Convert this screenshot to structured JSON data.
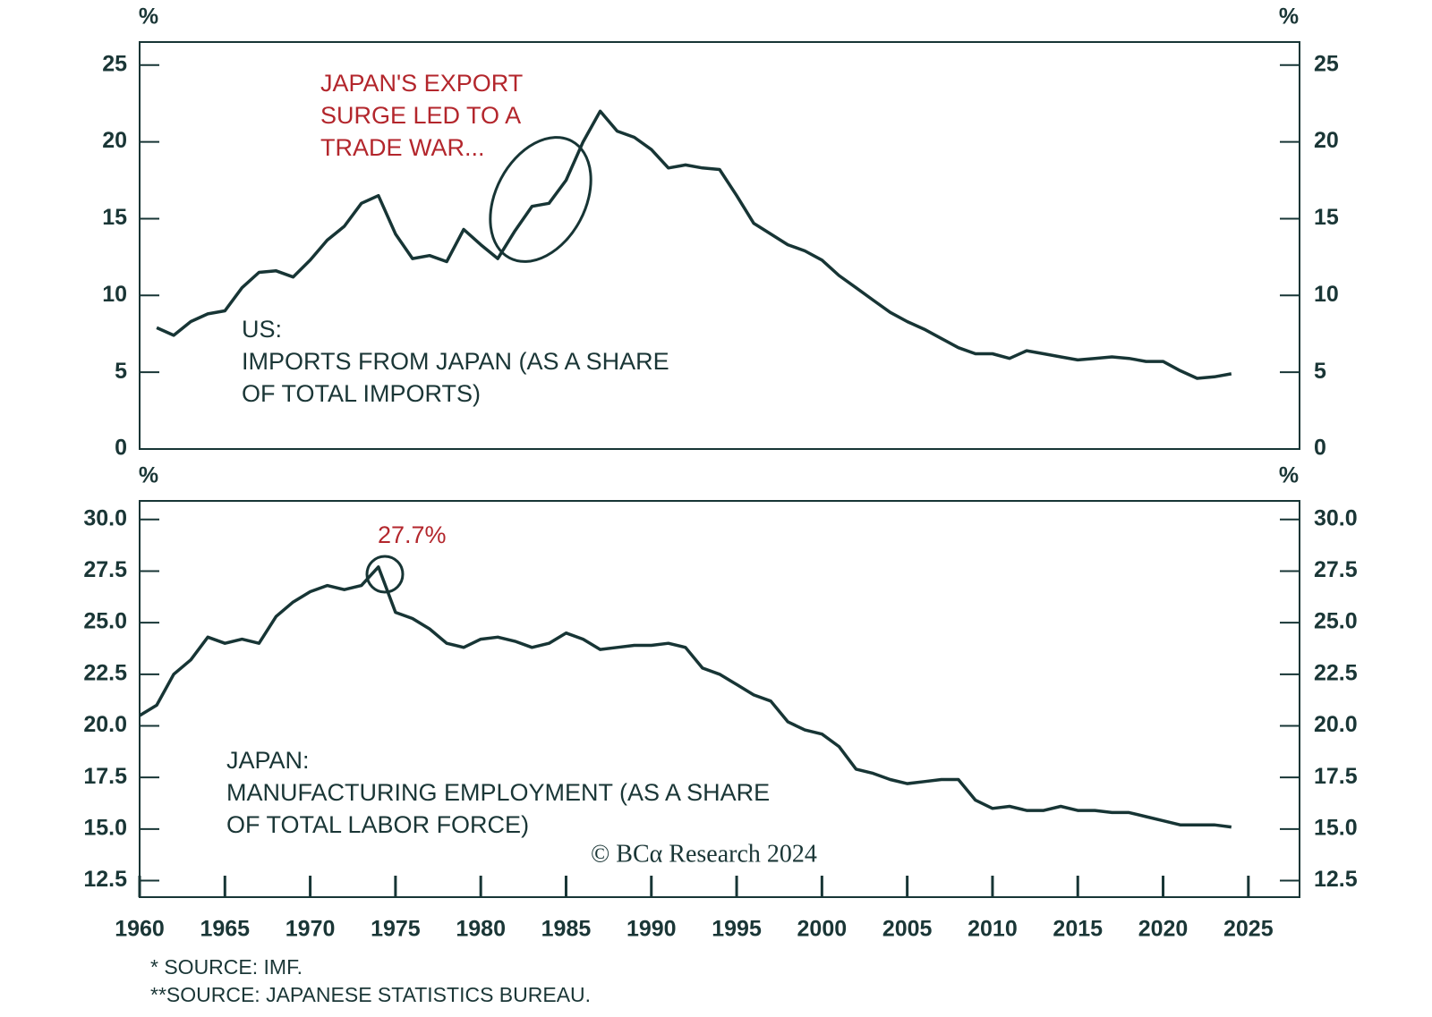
{
  "chart_data": [
    {
      "type": "line",
      "unit_left": "%",
      "unit_right": "%",
      "annotation": [
        "JAPAN'S EXPORT",
        "SURGE LED TO A",
        "TRADE WAR..."
      ],
      "label": [
        "US:",
        "IMPORTS FROM JAPAN (AS A SHARE",
        "OF TOTAL IMPORTS)"
      ],
      "xlim": [
        1960,
        2028
      ],
      "ylim": [
        0,
        26.5
      ],
      "yticks": [
        0,
        5,
        10,
        15,
        20,
        25
      ],
      "series": [
        {
          "color": "#173535",
          "x": [
            1961,
            1962,
            1963,
            1964,
            1965,
            1966,
            1967,
            1968,
            1969,
            1970,
            1971,
            1972,
            1973,
            1974,
            1975,
            1976,
            1977,
            1978,
            1979,
            1980,
            1981,
            1982,
            1983,
            1984,
            1985,
            1986,
            1987,
            1988,
            1989,
            1990,
            1991,
            1992,
            1993,
            1994,
            1995,
            1996,
            1997,
            1998,
            1999,
            2000,
            2001,
            2002,
            2003,
            2004,
            2005,
            2006,
            2007,
            2008,
            2009,
            2010,
            2011,
            2012,
            2013,
            2014,
            2015,
            2016,
            2017,
            2018,
            2019,
            2020,
            2021,
            2022,
            2023,
            2024
          ],
          "values": [
            7.9,
            7.4,
            8.3,
            8.8,
            9.0,
            10.5,
            11.5,
            11.6,
            11.2,
            12.3,
            13.6,
            14.5,
            16.0,
            16.5,
            14.0,
            12.4,
            12.6,
            12.2,
            14.3,
            13.3,
            12.4,
            14.2,
            15.8,
            16.0,
            17.5,
            20.0,
            22.0,
            20.7,
            20.3,
            19.5,
            18.3,
            18.5,
            18.3,
            18.2,
            16.5,
            14.7,
            14.0,
            13.3,
            12.9,
            12.3,
            11.3,
            10.5,
            9.7,
            8.9,
            8.3,
            7.8,
            7.2,
            6.6,
            6.2,
            6.2,
            5.9,
            6.4,
            6.2,
            6.0,
            5.8,
            5.9,
            6.0,
            5.9,
            5.7,
            5.7,
            5.1,
            4.6,
            4.7,
            4.9
          ]
        }
      ]
    },
    {
      "type": "line",
      "unit_left": "%",
      "unit_right": "%",
      "annotation": [
        "27.7%"
      ],
      "label": [
        "JAPAN:",
        "MANUFACTURING EMPLOYMENT (AS A SHARE",
        "OF TOTAL LABOR FORCE)"
      ],
      "xlim": [
        1960,
        2028
      ],
      "xticks": [
        1960,
        1965,
        1970,
        1975,
        1980,
        1985,
        1990,
        1995,
        2000,
        2005,
        2010,
        2015,
        2020,
        2025
      ],
      "ylim": [
        11.7,
        30.9
      ],
      "yticks": [
        {
          "value": 30,
          "label": "30.0"
        },
        27.5,
        {
          "value": 25,
          "label": "25.0"
        },
        22.5,
        {
          "value": 20,
          "label": "20.0"
        },
        17.5,
        {
          "value": 15,
          "label": "15.0"
        },
        12.5
      ],
      "series": [
        {
          "color": "#173535",
          "x": [
            1960,
            1961,
            1962,
            1963,
            1964,
            1965,
            1966,
            1967,
            1968,
            1969,
            1970,
            1971,
            1972,
            1973,
            1974,
            1975,
            1976,
            1977,
            1978,
            1979,
            1980,
            1981,
            1982,
            1983,
            1984,
            1985,
            1986,
            1987,
            1988,
            1989,
            1990,
            1991,
            1992,
            1993,
            1994,
            1995,
            1996,
            1997,
            1998,
            1999,
            2000,
            2001,
            2002,
            2003,
            2004,
            2005,
            2006,
            2007,
            2008,
            2009,
            2010,
            2011,
            2012,
            2013,
            2014,
            2015,
            2016,
            2017,
            2018,
            2019,
            2020,
            2021,
            2022,
            2023,
            2024
          ],
          "values": [
            20.5,
            21.0,
            22.5,
            23.2,
            24.3,
            24.0,
            24.2,
            24.0,
            25.3,
            26.0,
            26.5,
            26.8,
            26.6,
            26.8,
            27.7,
            25.5,
            25.2,
            24.7,
            24.0,
            23.8,
            24.2,
            24.3,
            24.1,
            23.8,
            24.0,
            24.5,
            24.2,
            23.7,
            23.8,
            23.9,
            23.9,
            24.0,
            23.8,
            22.8,
            22.5,
            22.0,
            21.5,
            21.2,
            20.2,
            19.8,
            19.6,
            19.0,
            17.9,
            17.7,
            17.4,
            17.2,
            17.3,
            17.4,
            17.4,
            16.4,
            16.0,
            16.1,
            15.9,
            15.9,
            16.1,
            15.9,
            15.9,
            15.8,
            15.8,
            15.6,
            15.4,
            15.2,
            15.2,
            15.2,
            15.1
          ]
        }
      ]
    }
  ],
  "footer": {
    "credit": "© BCα Research 2024",
    "sources": [
      "* SOURCE: IMF.",
      "**SOURCE: JAPANESE STATISTICS BUREAU."
    ]
  }
}
